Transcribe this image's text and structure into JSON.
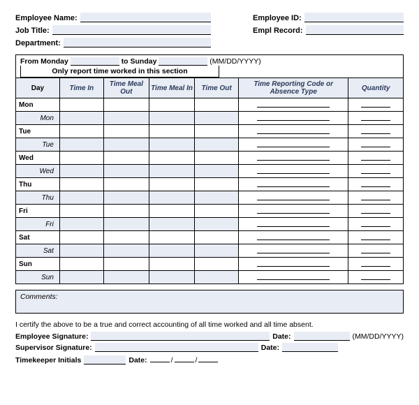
{
  "header": {
    "employee_name_label": "Employee Name:",
    "job_title_label": "Job Title:",
    "department_label": "Department:",
    "employee_id_label": "Employee ID:",
    "empl_record_label": "Empl Record:"
  },
  "range": {
    "from_label": "From Monday",
    "to_label": "to Sunday",
    "format_hint": "(MM/DD/YYYY)",
    "banner": "Only report time worked in this section"
  },
  "table": {
    "columns": {
      "day": "Day",
      "time_in": "Time In",
      "time_meal_out": "Time Meal Out",
      "time_meal_in": "Time Meal In",
      "time_out": "Time Out",
      "reporting_code": "Time Reporting Code or Absence Type",
      "quantity": "Quantity"
    },
    "widths": {
      "day": 56,
      "time_in": 56,
      "meal_out": 58,
      "meal_in": 58,
      "time_out": 56,
      "code": 140,
      "qty": 70
    },
    "colors": {
      "shade": "#e8ecf4",
      "border": "#000000",
      "header_text": "#2a3a5a"
    },
    "days": [
      {
        "short": "Mon",
        "sub": "Mon"
      },
      {
        "short": "Tue",
        "sub": "Tue"
      },
      {
        "short": "Wed",
        "sub": "Wed"
      },
      {
        "short": "Thu",
        "sub": "Thu"
      },
      {
        "short": "Fri",
        "sub": "Fri"
      },
      {
        "short": "Sat",
        "sub": "Sat"
      },
      {
        "short": "Sun",
        "sub": "Sun"
      }
    ]
  },
  "comments": {
    "label": "Comments:"
  },
  "cert": {
    "text": "I certify the above to be a true and correct accounting of all time worked and all time absent.",
    "emp_sig_label": "Employee Signature:",
    "sup_sig_label": "Supervisor Signature:",
    "timekeeper_label": "Timekeeper Initials",
    "date_label": "Date:",
    "format_hint": "(MM/DD/YYYY)"
  }
}
